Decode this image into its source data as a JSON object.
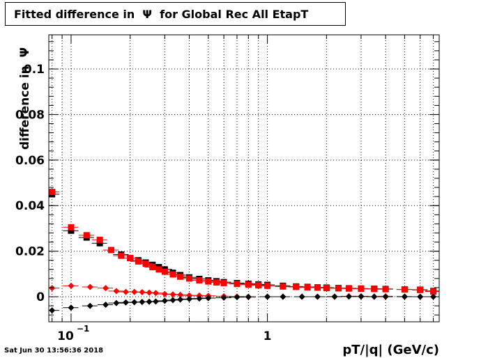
{
  "title": "Fitted difference in  Ψ  for Global Rec All EtapT",
  "xlabel": "pT/|q| (GeV/c)",
  "ylabel": "difference in  Ψ",
  "datestamp": "Sat Jun 30 13:56:36 2018",
  "chart_data": {
    "type": "scatter",
    "title": "Fitted difference in  Ψ  for Global Rec All EtapT",
    "xlabel": "pT/|q| (GeV/c)",
    "ylabel": "difference in  Ψ",
    "xscale": "log",
    "xlim": [
      0.077,
      7.5
    ],
    "ylim": [
      -0.011,
      0.115
    ],
    "grid": true,
    "x_tick_labels": [
      {
        "value": 0.1,
        "label": "10",
        "exponent": "−1"
      },
      {
        "value": 1,
        "label": "1",
        "exponent": ""
      }
    ],
    "y_tick_labels": [
      "0",
      "0.02",
      "0.04",
      "0.06",
      "0.08",
      "0.1"
    ],
    "y_tick_values": [
      0,
      0.02,
      0.04,
      0.06,
      0.08,
      0.1
    ],
    "series": [
      {
        "marker": "square",
        "color": "#000000",
        "x": [
          0.08,
          0.1,
          0.12,
          0.14,
          0.16,
          0.18,
          0.2,
          0.22,
          0.24,
          0.26,
          0.28,
          0.3,
          0.33,
          0.36,
          0.4,
          0.45,
          0.5,
          0.55,
          0.6,
          0.7,
          0.8,
          0.9,
          1.0,
          1.2,
          1.4,
          1.6,
          1.8,
          2.0,
          2.3,
          2.6,
          3.0,
          3.5,
          4.0,
          5.0,
          6.0,
          7.0
        ],
        "y": [
          0.045,
          0.029,
          0.026,
          0.0235,
          0.0205,
          0.0185,
          0.017,
          0.016,
          0.015,
          0.014,
          0.013,
          0.012,
          0.0105,
          0.0095,
          0.0085,
          0.0078,
          0.0072,
          0.0068,
          0.0064,
          0.006,
          0.0057,
          0.0054,
          0.0052,
          0.0048,
          0.0045,
          0.0043,
          0.0041,
          0.004,
          0.0038,
          0.0037,
          0.0036,
          0.0035,
          0.0034,
          0.0032,
          0.003,
          0.0025
        ]
      },
      {
        "marker": "square",
        "color": "#ff0000",
        "x": [
          0.08,
          0.1,
          0.12,
          0.14,
          0.16,
          0.18,
          0.2,
          0.22,
          0.24,
          0.26,
          0.28,
          0.3,
          0.33,
          0.36,
          0.4,
          0.45,
          0.5,
          0.55,
          0.6,
          0.7,
          0.8,
          0.9,
          1.0,
          1.2,
          1.4,
          1.6,
          1.8,
          2.0,
          2.3,
          2.6,
          3.0,
          3.5,
          4.0,
          5.0,
          6.0,
          7.0
        ],
        "y": [
          0.046,
          0.0305,
          0.027,
          0.025,
          0.0205,
          0.018,
          0.017,
          0.0155,
          0.0145,
          0.013,
          0.012,
          0.011,
          0.0098,
          0.0088,
          0.008,
          0.0072,
          0.0067,
          0.0063,
          0.006,
          0.0056,
          0.0053,
          0.005,
          0.0048,
          0.0045,
          0.0043,
          0.0041,
          0.004,
          0.0038,
          0.0037,
          0.0036,
          0.0035,
          0.0034,
          0.0033,
          0.0032,
          0.0031,
          0.0023
        ]
      },
      {
        "marker": "diamond",
        "color": "#ff0000",
        "x": [
          0.08,
          0.1,
          0.125,
          0.15,
          0.17,
          0.19,
          0.21,
          0.23,
          0.25,
          0.27,
          0.3,
          0.33,
          0.36,
          0.4,
          0.45,
          0.5,
          0.6,
          0.7,
          0.8,
          1.0,
          1.2,
          1.5,
          1.8,
          2.2,
          2.6,
          3.0,
          3.5,
          4.0,
          5.0,
          6.0,
          7.0
        ],
        "y": [
          0.0038,
          0.0048,
          0.0043,
          0.0038,
          0.0025,
          0.0021,
          0.0021,
          0.002,
          0.0018,
          0.0016,
          0.0012,
          0.001,
          0.0008,
          0.0006,
          0.0005,
          0.0004,
          0.0002,
          0.0001,
          0.0,
          0.0,
          0.0,
          0.0,
          0.0,
          0.0001,
          0.0002,
          0.0002,
          0.0001,
          0.0002,
          0.0001,
          0.0,
          0.0
        ]
      },
      {
        "marker": "diamond",
        "color": "#000000",
        "x": [
          0.08,
          0.1,
          0.125,
          0.15,
          0.17,
          0.19,
          0.21,
          0.23,
          0.25,
          0.27,
          0.3,
          0.33,
          0.36,
          0.4,
          0.45,
          0.5,
          0.6,
          0.7,
          0.8,
          1.0,
          1.2,
          1.5,
          1.8,
          2.2,
          2.6,
          3.0,
          3.5,
          4.0,
          5.0,
          6.0,
          7.0
        ],
        "y": [
          -0.006,
          -0.0048,
          -0.004,
          -0.0035,
          -0.0028,
          -0.0025,
          -0.0024,
          -0.0023,
          -0.0022,
          -0.0021,
          -0.0018,
          -0.0015,
          -0.0012,
          -0.001,
          -0.0008,
          -0.0006,
          -0.0004,
          -0.0002,
          -0.0001,
          0.0,
          0.0,
          0.0,
          0.0,
          0.0,
          0.0001,
          0.0001,
          0.0,
          0.0,
          0.0,
          0.0,
          0.0
        ]
      }
    ]
  }
}
